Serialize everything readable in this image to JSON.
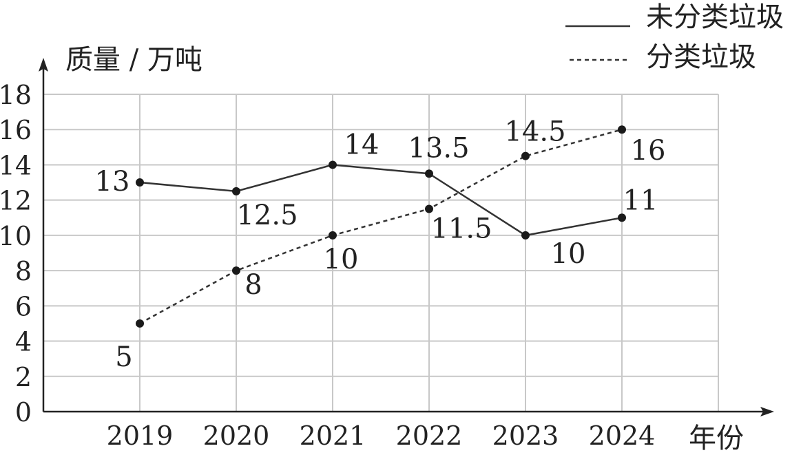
{
  "chart_data": {
    "type": "line",
    "ylabel": "质量 / 万吨",
    "xlabel": "年份",
    "categories": [
      "2019",
      "2020",
      "2021",
      "2022",
      "2023",
      "2024"
    ],
    "ylim": [
      0,
      18
    ],
    "yticks": [
      "0",
      "2",
      "4",
      "6",
      "8",
      "10",
      "12",
      "14",
      "16",
      "18"
    ],
    "grid": true,
    "legend_position": "top-right",
    "series": [
      {
        "name": "未分类垃圾",
        "style": "solid",
        "values": [
          13,
          12.5,
          14,
          13.5,
          10,
          11
        ],
        "labels": [
          "13",
          "12.5",
          "14",
          "13.5",
          "10",
          "11"
        ]
      },
      {
        "name": "分类垃圾",
        "style": "dashed",
        "values": [
          5,
          8,
          10,
          11.5,
          14.5,
          16
        ],
        "labels": [
          "5",
          "8",
          "10",
          "11.5",
          "14.5",
          "16"
        ]
      }
    ],
    "colors": {
      "line": "#333333",
      "grid": "#c8c8c8",
      "axis": "#222222"
    }
  }
}
